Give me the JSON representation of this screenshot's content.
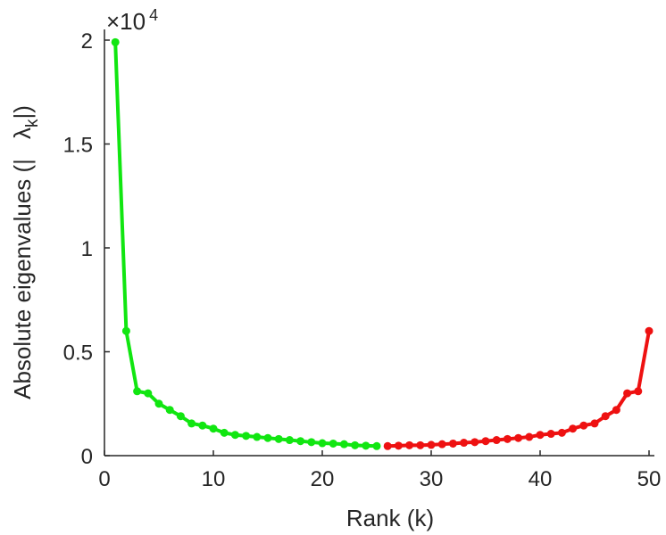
{
  "chart_data": {
    "type": "line",
    "title": "",
    "xlabel": "Rank (k)",
    "ylabel": {
      "prefix": "Absolute eigenvalues (|",
      "lambda": "λ",
      "sub": "k",
      "suffix": "|)"
    },
    "y_exponent": {
      "base": "×10",
      "power": "4"
    },
    "xlim": [
      0,
      50
    ],
    "ylim": [
      0,
      2
    ],
    "x_ticks": [
      "0",
      "10",
      "20",
      "30",
      "40",
      "50"
    ],
    "y_ticks": [
      "0",
      "0.5",
      "1",
      "1.5",
      "2"
    ],
    "x_tick_values": [
      0,
      10,
      20,
      30,
      40,
      50
    ],
    "y_tick_values": [
      0,
      0.5,
      1,
      1.5,
      2
    ],
    "grid": false,
    "colors": {
      "green": "#11e611",
      "red": "#ee1111",
      "axis": "#262626"
    },
    "series": [
      {
        "color": "green",
        "x": [
          1,
          2,
          3,
          4,
          5,
          6,
          7,
          8,
          9,
          10,
          11,
          12,
          13,
          14,
          15,
          16,
          17,
          18,
          19,
          20,
          21,
          22,
          23,
          24,
          25
        ],
        "y": [
          1.99,
          0.6,
          0.31,
          0.3,
          0.25,
          0.22,
          0.19,
          0.155,
          0.145,
          0.13,
          0.11,
          0.1,
          0.095,
          0.09,
          0.085,
          0.08,
          0.075,
          0.07,
          0.065,
          0.06,
          0.058,
          0.055,
          0.05,
          0.048,
          0.046
        ]
      },
      {
        "color": "red",
        "x": [
          26,
          27,
          28,
          29,
          30,
          31,
          32,
          33,
          34,
          35,
          36,
          37,
          38,
          39,
          40,
          41,
          42,
          43,
          44,
          45,
          46,
          47,
          48,
          49,
          50
        ],
        "y": [
          0.046,
          0.048,
          0.05,
          0.05,
          0.052,
          0.055,
          0.058,
          0.062,
          0.065,
          0.07,
          0.075,
          0.08,
          0.085,
          0.09,
          0.1,
          0.105,
          0.11,
          0.13,
          0.145,
          0.155,
          0.19,
          0.22,
          0.3,
          0.31,
          0.6
        ]
      }
    ]
  }
}
